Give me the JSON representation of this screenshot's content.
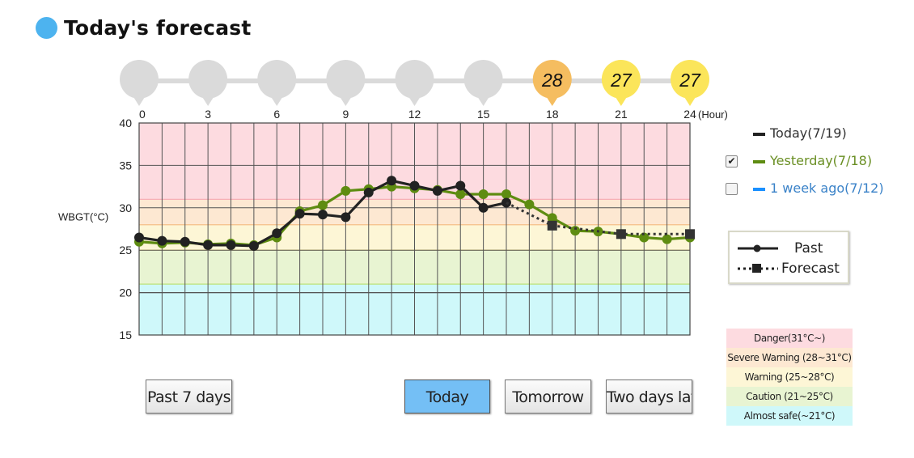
{
  "header": {
    "title": "Today's forecast"
  },
  "legend": {
    "series": [
      {
        "label": "Today(7/19)",
        "color": "#222222",
        "text_color": "#333333",
        "checkbox": null
      },
      {
        "label": "Yesterday(7/18)",
        "color": "#5e8c11",
        "text_color": "#6a8f24",
        "checkbox": true
      },
      {
        "label": "1 week ago(7/12)",
        "color": "#1a90ff",
        "text_color": "#3a82c8",
        "checkbox": false
      }
    ],
    "past_label": "Past",
    "forecast_label": "Forecast"
  },
  "zones": [
    {
      "label": "Danger(31°C~)",
      "color": "#fddbe0"
    },
    {
      "label": "Severe Warning (28~31°C)",
      "color": "#fde8d2"
    },
    {
      "label": "Warning (25~28°C)",
      "color": "#fdf6d6"
    },
    {
      "label": "Caution (21~25°C)",
      "color": "#e8f4d2"
    },
    {
      "label": "Almost safe(~21°C)",
      "color": "#cff8fa"
    }
  ],
  "buttons": [
    {
      "label": "Past 7 days",
      "active": false
    },
    {
      "label": "Today",
      "active": true
    },
    {
      "label": "Tomorrow",
      "active": false
    },
    {
      "label": "Two days later",
      "active": false
    }
  ],
  "chart_data": {
    "type": "line",
    "ylabel": "WBGT(°C)",
    "xlabel": "(Hour)",
    "ylim": [
      15,
      40
    ],
    "xlim": [
      0,
      24
    ],
    "yticks": [
      15,
      20,
      25,
      30,
      35,
      40
    ],
    "xticks": [
      0,
      3,
      6,
      9,
      12,
      15,
      18,
      21,
      24
    ],
    "grid": true,
    "bands": [
      {
        "from": 31,
        "to": 40,
        "color": "#fddbe0"
      },
      {
        "from": 28,
        "to": 31,
        "color": "#fde8d2"
      },
      {
        "from": 25,
        "to": 28,
        "color": "#fdf6d6"
      },
      {
        "from": 21,
        "to": 25,
        "color": "#e8f4d2"
      },
      {
        "from": 15,
        "to": 21,
        "color": "#cff8fa"
      }
    ],
    "band_lines": [
      {
        "value": 31,
        "color": "#f6a8b2"
      },
      {
        "value": 28,
        "color": "#f5c089"
      },
      {
        "value": 25,
        "color": "#f0d860"
      },
      {
        "value": 21,
        "color": "#bde27a"
      },
      {
        "value": 20,
        "color": "#555555"
      }
    ],
    "forecast_markers": [
      {
        "hour": 0,
        "value": null
      },
      {
        "hour": 3,
        "value": null
      },
      {
        "hour": 6,
        "value": null
      },
      {
        "hour": 9,
        "value": null
      },
      {
        "hour": 12,
        "value": null
      },
      {
        "hour": 15,
        "value": null
      },
      {
        "hour": 18,
        "value": 28,
        "color": "#f5bd60"
      },
      {
        "hour": 21,
        "value": 27,
        "color": "#fbe55a"
      },
      {
        "hour": 24,
        "value": 27,
        "color": "#fbe55a"
      }
    ],
    "series": [
      {
        "name": "Yesterday(7/18)",
        "color": "#5e8c11",
        "x": [
          0,
          1,
          2,
          3,
          4,
          5,
          6,
          7,
          8,
          9,
          10,
          11,
          12,
          13,
          14,
          15,
          16,
          17,
          18,
          19,
          20,
          21,
          22,
          23,
          24
        ],
        "values": [
          26.0,
          25.8,
          25.9,
          25.7,
          25.8,
          25.6,
          26.5,
          29.6,
          30.3,
          32.0,
          32.2,
          32.5,
          32.3,
          32.1,
          31.6,
          31.6,
          31.6,
          30.4,
          28.8,
          27.3,
          27.2,
          26.9,
          26.5,
          26.3,
          26.5
        ]
      },
      {
        "name": "Today(7/19)",
        "color": "#222222",
        "x": [
          0,
          1,
          2,
          3,
          4,
          5,
          6,
          7,
          8,
          9,
          10,
          11,
          12,
          13,
          14,
          15,
          16
        ],
        "values": [
          26.5,
          26.1,
          26.0,
          25.6,
          25.6,
          25.5,
          27.0,
          29.3,
          29.2,
          28.9,
          31.8,
          33.2,
          32.6,
          32.0,
          32.6,
          30.0,
          30.6
        ]
      },
      {
        "name": "Forecast",
        "color": "#333333",
        "dashed": true,
        "x": [
          16,
          18,
          21,
          24
        ],
        "values": [
          30.6,
          27.9,
          26.9,
          26.9
        ]
      }
    ]
  }
}
